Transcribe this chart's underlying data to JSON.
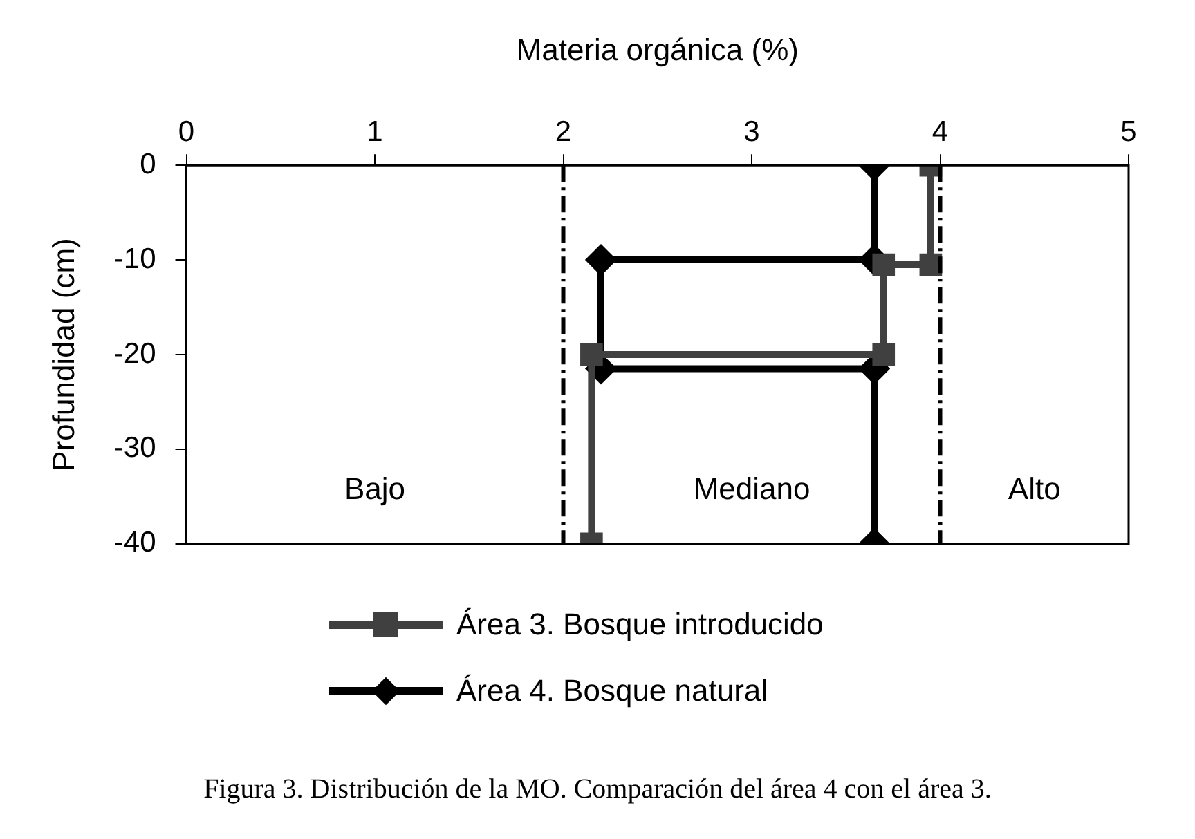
{
  "chart_data": {
    "type": "line",
    "xlabel": "Materia orgánica (%)",
    "ylabel": "Profundidad (cm)",
    "xlim": [
      0,
      5
    ],
    "xticks": [
      0,
      1,
      2,
      3,
      4,
      5
    ],
    "ylim": [
      -40,
      0
    ],
    "yticks": [
      0,
      -10,
      -20,
      -30,
      -40
    ],
    "series": [
      {
        "name": "Área 3. Bosque introducido",
        "color": "#404040",
        "marker": "square",
        "x": [
          3.95,
          3.95,
          3.7,
          3.7,
          2.15,
          2.15
        ],
        "values": [
          0,
          -10.5,
          -10.5,
          -20,
          -20,
          -40
        ]
      },
      {
        "name": "Área 4. Bosque natural",
        "color": "#000000",
        "marker": "diamond",
        "x": [
          3.65,
          3.65,
          2.2,
          2.2,
          3.65,
          3.65
        ],
        "values": [
          0,
          -10,
          -10,
          -21.5,
          -21.5,
          -40
        ]
      }
    ],
    "ref_lines": [
      {
        "axis": "x",
        "value": 2,
        "color": "#000000",
        "line_style": "dashdot"
      },
      {
        "axis": "x",
        "value": 4,
        "color": "#000000",
        "line_style": "dashdot"
      }
    ],
    "annotations": [
      "Bajo",
      "Mediano",
      "Alto",
      "Figura 3. Distribución de la MO. Comparación del área 4 con el área 3."
    ],
    "legend": "bottom",
    "line_style": "solid"
  }
}
